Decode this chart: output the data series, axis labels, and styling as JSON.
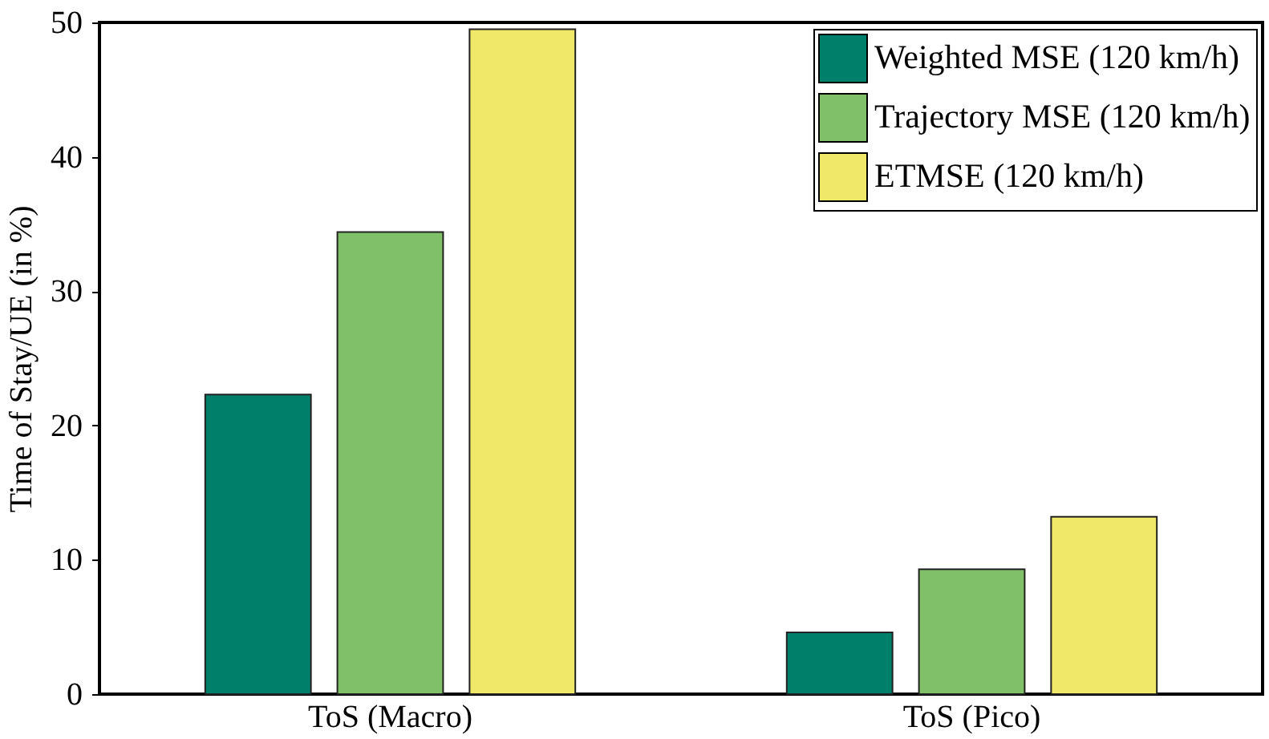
{
  "chart_data": {
    "type": "bar",
    "ylabel": "Time of Stay/UE (in %)",
    "categories": [
      "ToS (Macro)",
      "ToS (Pico)"
    ],
    "series": [
      {
        "name": "Weighted MSE (120 km/h)",
        "color": "#00806a",
        "values": [
          22.3,
          4.6
        ]
      },
      {
        "name": "Trajectory MSE (120 km/h)",
        "color": "#80c068",
        "values": [
          34.4,
          9.3
        ]
      },
      {
        "name": "ETMSE (120 km/h)",
        "color": "#f0e868",
        "values": [
          49.5,
          13.2
        ]
      }
    ],
    "ylim": [
      0,
      50
    ],
    "yticks": [
      0,
      10,
      20,
      30,
      40,
      50
    ],
    "grid": false,
    "legend": "top right"
  }
}
